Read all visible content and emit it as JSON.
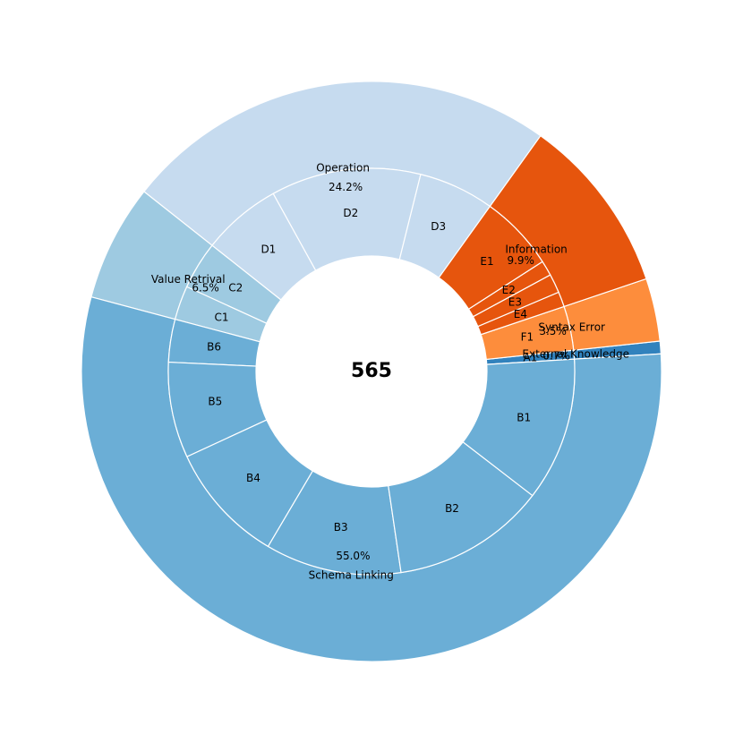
{
  "chart_data": {
    "type": "pie",
    "center_label": "565",
    "outer": [
      {
        "name": "External Knowledge",
        "percent_label": "0.7%",
        "value": 0.7,
        "color": "#3182bd"
      },
      {
        "name": "Syntax Error",
        "percent_label": "3.5%",
        "value": 3.5,
        "color": "#fd8d3c"
      },
      {
        "name": "Information",
        "percent_label": "9.9%",
        "value": 9.9,
        "color": "#e6550d"
      },
      {
        "name": "Operation",
        "percent_label": "24.2%",
        "value": 24.2,
        "color": "#c6dbef"
      },
      {
        "name": "Value Retrival",
        "percent_label": "6.5%",
        "value": 6.5,
        "color": "#9ecae1"
      },
      {
        "name": "Schema Linking",
        "percent_label": "55.0%",
        "value": 55.0,
        "color": "#6baed6"
      }
    ],
    "inner": [
      {
        "label": "A1",
        "value": 0.7,
        "color": "#3182bd"
      },
      {
        "label": "F1",
        "value": 3.5,
        "color": "#fd8d3c"
      },
      {
        "label": "E4",
        "value": 1.2,
        "color": "#e6550d"
      },
      {
        "label": "E3",
        "value": 1.5,
        "color": "#e6550d"
      },
      {
        "label": "E2",
        "value": 1.2,
        "color": "#e6550d"
      },
      {
        "label": "E1",
        "value": 6.0,
        "color": "#e6550d"
      },
      {
        "label": "D3",
        "value": 6.0,
        "color": "#c6dbef"
      },
      {
        "label": "D2",
        "value": 11.9,
        "color": "#c6dbef"
      },
      {
        "label": "D1",
        "value": 6.3,
        "color": "#c6dbef"
      },
      {
        "label": "C2",
        "value": 3.8,
        "color": "#9ecae1"
      },
      {
        "label": "C1",
        "value": 2.7,
        "color": "#9ecae1"
      },
      {
        "label": "B6",
        "value": 3.4,
        "color": "#6baed6"
      },
      {
        "label": "B5",
        "value": 7.6,
        "color": "#6baed6"
      },
      {
        "label": "B4",
        "value": 9.6,
        "color": "#6baed6"
      },
      {
        "label": "B3",
        "value": 10.8,
        "color": "#6baed6"
      },
      {
        "label": "B2",
        "value": 12.2,
        "color": "#6baed6"
      },
      {
        "label": "B1",
        "value": 11.4,
        "color": "#6baed6"
      }
    ]
  }
}
